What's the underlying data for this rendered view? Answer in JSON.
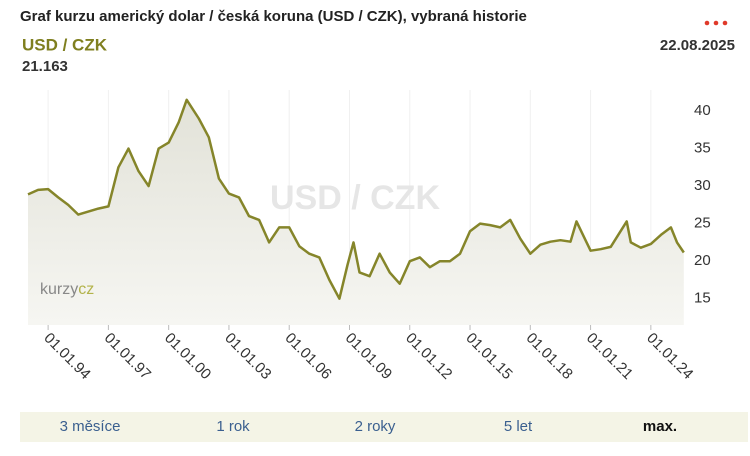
{
  "chart_data": {
    "type": "line",
    "title": "Graf kurzu americký dolar / česká koruna (USD / CZK), vybraná historie",
    "pair": "USD / CZK",
    "date": "22.08.2025",
    "logo": [
      "kurzy",
      "cz"
    ],
    "color": "#85852a",
    "x": [
      1993.0,
      1993.5,
      1994.0,
      1994.5,
      1995.0,
      1995.5,
      1996.0,
      1996.5,
      1997.0,
      1997.5,
      1998.0,
      1998.5,
      1999.0,
      1999.5,
      2000.0,
      2000.5,
      2000.9,
      2001.5,
      2002.0,
      2002.5,
      2003.0,
      2003.5,
      2004.0,
      2004.5,
      2005.0,
      2005.5,
      2006.0,
      2006.5,
      2007.0,
      2007.5,
      2008.0,
      2008.5,
      2008.9,
      2009.2,
      2009.5,
      2010.0,
      2010.5,
      2011.0,
      2011.5,
      2012.0,
      2012.5,
      2013.0,
      2013.5,
      2014.0,
      2014.5,
      2015.0,
      2015.5,
      2016.0,
      2016.5,
      2017.0,
      2017.5,
      2018.0,
      2018.5,
      2019.0,
      2019.5,
      2020.0,
      2020.3,
      2020.8,
      2021.0,
      2021.5,
      2022.0,
      2022.8,
      2023.0,
      2023.5,
      2024.0,
      2024.5,
      2025.0,
      2025.3,
      2025.64
    ],
    "values": [
      28.9,
      29.5,
      29.6,
      28.5,
      27.5,
      26.2,
      26.6,
      27.0,
      27.3,
      32.5,
      35,
      32,
      30,
      35,
      35.8,
      38.5,
      41.5,
      39,
      36.5,
      31,
      29,
      28.5,
      26,
      25.5,
      22.5,
      24.5,
      24.5,
      22,
      21,
      20.5,
      17.5,
      15,
      19.5,
      22.5,
      18.5,
      18,
      21,
      18.5,
      17,
      20,
      20.5,
      19.2,
      20,
      20,
      21,
      24,
      25,
      24.8,
      24.5,
      25.5,
      23,
      21,
      22.2,
      22.6,
      22.8,
      22.6,
      25.3,
      22.5,
      21.4,
      21.6,
      21.9,
      25.3,
      22.5,
      21.8,
      22.3,
      23.5,
      24.5,
      22.5,
      21.163
    ],
    "xlim": [
      1992.7,
      2025.6
    ],
    "xticks": [
      {
        "value": 1994,
        "label": "01.01.94"
      },
      {
        "value": 1997,
        "label": "01.01.97"
      },
      {
        "value": 2000,
        "label": "01.01.00"
      },
      {
        "value": 2003,
        "label": "01.01.03"
      },
      {
        "value": 2006,
        "label": "01.01.06"
      },
      {
        "value": 2009,
        "label": "01.01.09"
      },
      {
        "value": 2012,
        "label": "01.01.12"
      },
      {
        "value": 2015,
        "label": "01.01.15"
      },
      {
        "value": 2018,
        "label": "01.01.18"
      },
      {
        "value": 2021,
        "label": "01.01.21"
      },
      {
        "value": 2024,
        "label": "01.01.24"
      }
    ],
    "ylim": [
      11.5,
      42.8
    ],
    "yticks": [
      15,
      20,
      25,
      30,
      35,
      40
    ],
    "grid": true
  },
  "range_buttons": [
    "3 měsíce",
    "1 rok",
    "2 roky",
    "5 let",
    "max."
  ]
}
